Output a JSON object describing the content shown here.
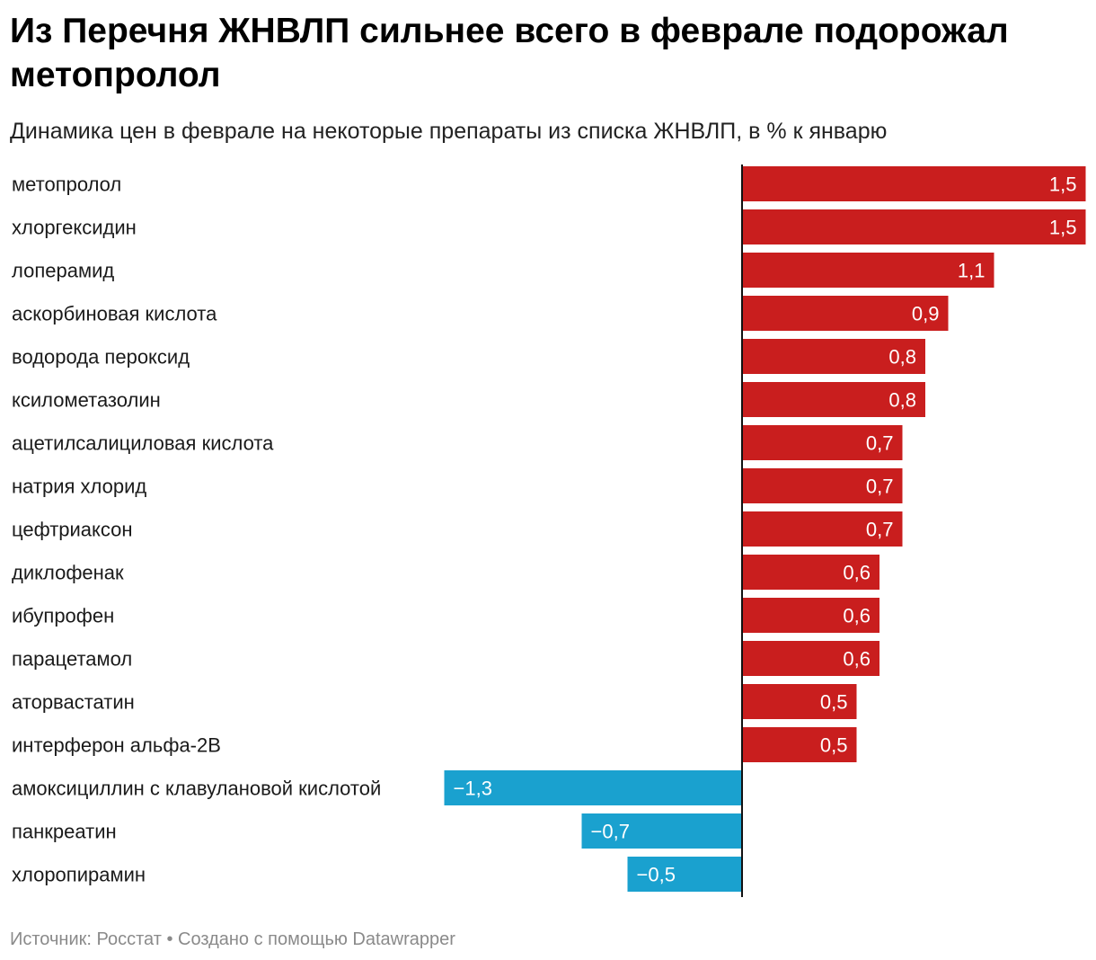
{
  "title": "Из Перечня ЖНВЛП сильнее всего в феврале подорожал метопролол",
  "subtitle": "Динамика цен в феврале на некоторые препараты из списка ЖНВЛП, в % к январю",
  "footer": {
    "source_label": "Источник:",
    "source": "Росстат",
    "separator": "•",
    "credit": "Создано с помощью Datawrapper"
  },
  "colors": {
    "positive": "#c91e1e",
    "negative": "#1aa1cf",
    "value_label": "#ffffff",
    "axis": "#111111"
  },
  "chart_data": {
    "type": "bar",
    "orientation": "horizontal",
    "title": "Из Перечня ЖНВЛП сильнее всего в феврале подорожал метопролол",
    "subtitle": "Динамика цен в феврале на некоторые препараты из списка ЖНВЛП, в % к январю",
    "categories": [
      "метопролол",
      "хлоргексидин",
      "лоперамид",
      "аскорбиновая кислота",
      "водорода пероксид",
      "ксилометазолин",
      "ацетилсалициловая кислота",
      "натрия хлорид",
      "цефтриаксон",
      "диклофенак",
      "ибупрофен",
      "парацетамол",
      "аторвастатин",
      "интерферон альфа-2B",
      "амоксициллин с клавулановой кислотой",
      "панкреатин",
      "хлоропирамин"
    ],
    "values": [
      1.5,
      1.5,
      1.1,
      0.9,
      0.8,
      0.8,
      0.7,
      0.7,
      0.7,
      0.6,
      0.6,
      0.6,
      0.5,
      0.5,
      -1.3,
      -0.7,
      -0.5
    ],
    "value_labels": [
      "1,5",
      "1,5",
      "1,1",
      "0,9",
      "0,8",
      "0,8",
      "0,7",
      "0,7",
      "0,7",
      "0,6",
      "0,6",
      "0,6",
      "0,5",
      "0,5",
      "−1,3",
      "−0,7",
      "−0,5"
    ],
    "xlim": [
      -1.3,
      1.5
    ],
    "grid": false,
    "legend": "none"
  }
}
